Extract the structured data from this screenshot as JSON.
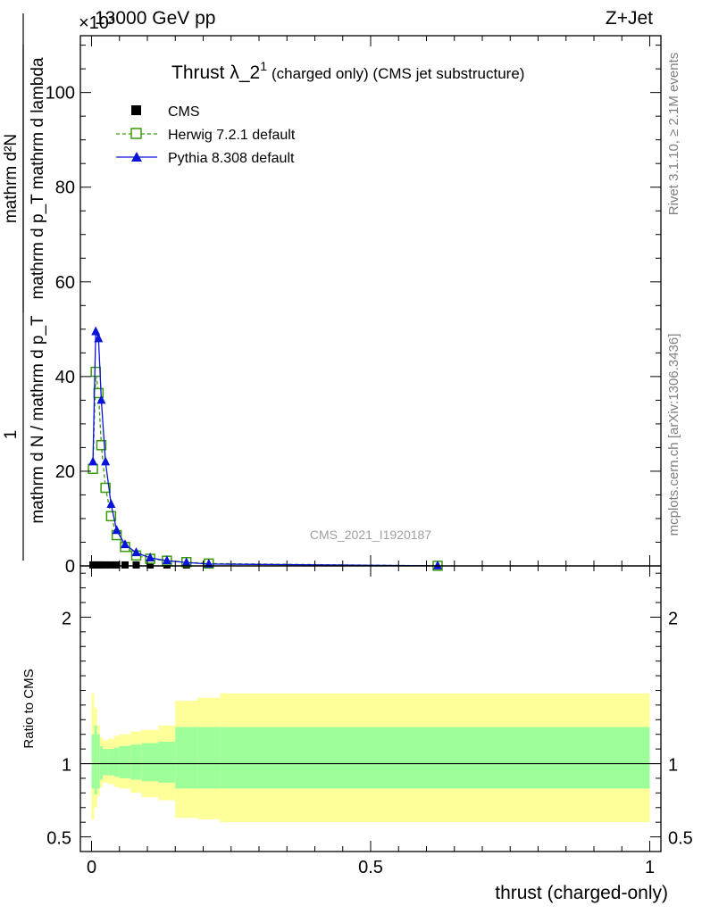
{
  "header": {
    "left": "13000 GeV pp",
    "right": "Z+Jet",
    "exponent": "×10³"
  },
  "side_labels": {
    "rivet": "Rivet 3.1.10, ≥ 2.1M events",
    "mcplots": "mcplots.cern.ch [arXiv:1306.3436]"
  },
  "watermark": "CMS_2021_I1920187",
  "chart_data": [
    {
      "type": "line",
      "title": "Thrust λ_2¹",
      "title_main": "Thrust λ_2",
      "title_sup": "1",
      "subtitle": "(charged only) (CMS jet substructure)",
      "ylabel_numer": "mathrm d²N",
      "ylabel_denom": "mathrm d p_T mathrm d lambda",
      "ylabel_lead": "1",
      "ylabel_lead_denom": "mathrm d N / mathrm d p_T",
      "xlim": [
        -0.02,
        1.02
      ],
      "ylim": [
        0,
        112
      ],
      "y_ticks": [
        0,
        20,
        40,
        60,
        80,
        100
      ],
      "legend_position": "top-left",
      "series": [
        {
          "name": "CMS",
          "color": "#000000",
          "marker": "filled-square",
          "x": [
            0.0025,
            0.0075,
            0.0125,
            0.0175,
            0.025,
            0.035,
            0.045,
            0.06,
            0.08,
            0.105,
            0.135,
            0.17,
            0.21,
            0.62
          ],
          "y": [
            0.2,
            0.2,
            0.2,
            0.2,
            0.2,
            0.2,
            0.2,
            0.2,
            0.2,
            0.2,
            0.2,
            0.2,
            0.2,
            0.2
          ]
        },
        {
          "name": "Herwig 7.2.1 default",
          "color": "#3a9a0a",
          "marker": "open-square",
          "dashed": true,
          "x": [
            0.0025,
            0.0075,
            0.0125,
            0.0175,
            0.025,
            0.035,
            0.045,
            0.06,
            0.08,
            0.105,
            0.135,
            0.17,
            0.21,
            0.62
          ],
          "y": [
            20.5,
            41,
            36.5,
            25.5,
            16.5,
            10.5,
            6.5,
            4,
            2.2,
            1.5,
            1.1,
            0.8,
            0.5,
            0.02
          ]
        },
        {
          "name": "Pythia 8.308 default",
          "color": "#0a14d8",
          "marker": "filled-triangle",
          "dashed": false,
          "x": [
            0.0025,
            0.0075,
            0.0125,
            0.0175,
            0.025,
            0.035,
            0.045,
            0.06,
            0.08,
            0.105,
            0.135,
            0.17,
            0.21,
            0.62
          ],
          "y": [
            22,
            49.5,
            48,
            35,
            22,
            13,
            7.5,
            4.5,
            2.8,
            1.7,
            1.1,
            0.7,
            0.4,
            0.02
          ]
        }
      ]
    },
    {
      "type": "area",
      "ylabel": "Ratio to CMS",
      "xlabel": "thrust (charged-only)",
      "xlim": [
        -0.02,
        1.02
      ],
      "ylim": [
        0.4,
        2.35
      ],
      "y_ticks": [
        0.5,
        1,
        2
      ],
      "y_tick_labels": [
        "0.5",
        "1",
        "2"
      ],
      "x_ticks": [
        0,
        0.5,
        1
      ],
      "x_tick_labels": [
        "0",
        "0.5",
        "1"
      ],
      "reference": 1,
      "bands": {
        "edges": [
          0.0,
          0.005,
          0.01,
          0.015,
          0.02,
          0.03,
          0.04,
          0.05,
          0.07,
          0.09,
          0.12,
          0.15,
          0.19,
          0.23,
          1.0
        ],
        "stat_low": [
          0.83,
          0.79,
          0.83,
          0.89,
          0.92,
          0.92,
          0.91,
          0.9,
          0.89,
          0.88,
          0.87,
          0.83,
          0.83,
          0.83
        ],
        "stat_high": [
          1.2,
          1.26,
          1.2,
          1.12,
          1.1,
          1.1,
          1.11,
          1.12,
          1.13,
          1.14,
          1.15,
          1.25,
          1.25,
          1.25
        ],
        "tot_low": [
          0.62,
          0.7,
          0.78,
          0.84,
          0.87,
          0.86,
          0.84,
          0.83,
          0.8,
          0.77,
          0.75,
          0.63,
          0.62,
          0.6
        ],
        "tot_high": [
          1.48,
          1.38,
          1.26,
          1.18,
          1.16,
          1.17,
          1.19,
          1.2,
          1.22,
          1.23,
          1.26,
          1.43,
          1.45,
          1.48
        ],
        "stat_color": "#9cff99",
        "tot_color": "#ffff99"
      }
    }
  ]
}
